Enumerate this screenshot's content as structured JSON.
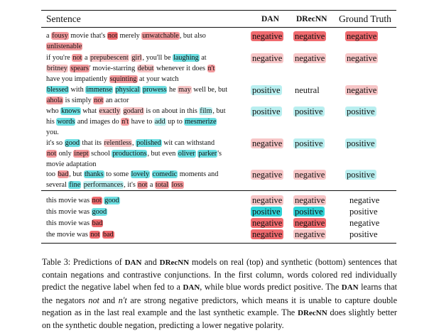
{
  "headers": {
    "sentence": "Sentence",
    "dan": "DAN",
    "drecnn": "DRecNN",
    "ground_truth": "Ground Truth"
  },
  "colors": {
    "neg-strong": "#f06b6f",
    "neg-mid": "#f39a9d",
    "neg-light": "#f7c6c7",
    "pos-strong": "#2ed3d7",
    "pos-mid": "#6ee0e3",
    "pos-light": "#b9eff0"
  },
  "real": [
    {
      "lines": [
        [
          [
            "a ",
            ""
          ],
          [
            "fousy",
            "neg-mid"
          ],
          [
            " movie that's ",
            ""
          ],
          [
            "not",
            "neg-strong"
          ],
          [
            " merely ",
            ""
          ],
          [
            "unwatchable",
            "neg-mid"
          ],
          [
            ", but also",
            ""
          ]
        ],
        [
          [
            "unlistenable",
            "neg-mid"
          ]
        ]
      ],
      "dan": {
        "text": "negative",
        "tone": "neg-strong"
      },
      "drecnn": {
        "text": "negative",
        "tone": "neg-strong"
      },
      "truth": {
        "text": "negative",
        "tone": "neg-strong"
      }
    },
    {
      "lines": [
        [
          [
            "if you're ",
            ""
          ],
          [
            "not",
            "neg-mid"
          ],
          [
            " a ",
            ""
          ],
          [
            "prepubescent",
            "neg-light"
          ],
          [
            " ",
            ""
          ],
          [
            "girl",
            "neg-light"
          ],
          [
            ", you'll be ",
            ""
          ],
          [
            "laughing",
            "pos-mid"
          ],
          [
            " at",
            ""
          ]
        ],
        [
          [
            "britney",
            "neg-light"
          ],
          [
            " ",
            ""
          ],
          [
            "spears",
            "neg-mid"
          ],
          [
            "' movie-starring ",
            ""
          ],
          [
            "debut",
            "neg-light"
          ],
          [
            " whenever it does ",
            ""
          ],
          [
            "n't",
            "neg-mid"
          ]
        ],
        [
          [
            "have you impatiently ",
            ""
          ],
          [
            "squinting",
            "neg-mid"
          ],
          [
            " at your watch",
            ""
          ]
        ]
      ],
      "dan": {
        "text": "negative",
        "tone": "neg-light"
      },
      "drecnn": {
        "text": "negative",
        "tone": "neg-light"
      },
      "truth": {
        "text": "negative",
        "tone": "neg-light"
      }
    },
    {
      "lines": [
        [
          [
            "blessed",
            "pos-mid"
          ],
          [
            " with ",
            ""
          ],
          [
            "immense",
            "pos-mid"
          ],
          [
            " ",
            ""
          ],
          [
            "physical",
            "pos-mid"
          ],
          [
            " ",
            ""
          ],
          [
            "prowess",
            "pos-mid"
          ],
          [
            " he ",
            ""
          ],
          [
            "may",
            "neg-light"
          ],
          [
            " well be, but",
            ""
          ]
        ],
        [
          [
            "ahola",
            "neg-mid"
          ],
          [
            " is simply ",
            ""
          ],
          [
            "not",
            "neg-mid"
          ],
          [
            " an actor",
            ""
          ]
        ]
      ],
      "dan": {
        "text": "positive",
        "tone": "pos-light"
      },
      "drecnn": {
        "text": "neutral",
        "tone": ""
      },
      "truth": {
        "text": "negative",
        "tone": "neg-light"
      }
    },
    {
      "lines": [
        [
          [
            "who ",
            ""
          ],
          [
            "knows",
            "pos-mid"
          ],
          [
            " what ",
            ""
          ],
          [
            "exactly",
            "neg-light"
          ],
          [
            " ",
            ""
          ],
          [
            "godard",
            "neg-light"
          ],
          [
            " is on about in this ",
            ""
          ],
          [
            "film",
            "pos-light"
          ],
          [
            ", but",
            ""
          ]
        ],
        [
          [
            "his ",
            ""
          ],
          [
            "words",
            "pos-mid"
          ],
          [
            " and images do ",
            ""
          ],
          [
            "n't",
            "neg-mid"
          ],
          [
            " have to ",
            ""
          ],
          [
            "add",
            "pos-light"
          ],
          [
            " up to ",
            ""
          ],
          [
            "mesmerize",
            "pos-mid"
          ]
        ],
        [
          [
            "you.",
            ""
          ]
        ]
      ],
      "dan": {
        "text": "positive",
        "tone": "pos-light"
      },
      "drecnn": {
        "text": "positive",
        "tone": "pos-light"
      },
      "truth": {
        "text": "positive",
        "tone": "pos-light"
      }
    },
    {
      "lines": [
        [
          [
            "it's so ",
            ""
          ],
          [
            "good",
            "pos-mid"
          ],
          [
            " that its ",
            ""
          ],
          [
            "relentless",
            "neg-light"
          ],
          [
            ", ",
            ""
          ],
          [
            "polished",
            "pos-mid"
          ],
          [
            " wit can withstand",
            ""
          ]
        ],
        [
          [
            "not",
            "neg-mid"
          ],
          [
            " only ",
            ""
          ],
          [
            "inept",
            "neg-mid"
          ],
          [
            " school ",
            ""
          ],
          [
            "productions",
            "pos-mid"
          ],
          [
            ", but even ",
            ""
          ],
          [
            "oliver",
            "pos-mid"
          ],
          [
            " ",
            ""
          ],
          [
            "parker",
            "pos-mid"
          ],
          [
            "'s",
            ""
          ]
        ],
        [
          [
            "movie adaptation",
            ""
          ]
        ]
      ],
      "dan": {
        "text": "negative",
        "tone": "neg-light"
      },
      "drecnn": {
        "text": "positive",
        "tone": "pos-light"
      },
      "truth": {
        "text": "positive",
        "tone": "pos-light"
      }
    },
    {
      "lines": [
        [
          [
            "too ",
            ""
          ],
          [
            "bad",
            "neg-mid"
          ],
          [
            ", but ",
            ""
          ],
          [
            "thanks",
            "pos-mid"
          ],
          [
            " to some ",
            ""
          ],
          [
            "lovely",
            "pos-mid"
          ],
          [
            " ",
            ""
          ],
          [
            "comedic",
            "pos-mid"
          ],
          [
            " moments and",
            ""
          ]
        ],
        [
          [
            "several ",
            ""
          ],
          [
            "fine",
            "pos-mid"
          ],
          [
            " ",
            ""
          ],
          [
            "performances",
            "pos-light"
          ],
          [
            ", it's ",
            ""
          ],
          [
            "not",
            "neg-mid"
          ],
          [
            " a ",
            ""
          ],
          [
            "total",
            "neg-mid"
          ],
          [
            " ",
            ""
          ],
          [
            "loss",
            "neg-mid"
          ]
        ]
      ],
      "dan": {
        "text": "negative",
        "tone": "neg-light"
      },
      "drecnn": {
        "text": "negative",
        "tone": "neg-light"
      },
      "truth": {
        "text": "positive",
        "tone": "pos-light"
      }
    }
  ],
  "synthetic": [
    {
      "words": [
        [
          "this movie was ",
          ""
        ],
        [
          "not",
          "neg-strong"
        ],
        [
          " ",
          ""
        ],
        [
          "good",
          "pos-mid"
        ]
      ],
      "dan": {
        "text": "negative",
        "tone": "neg-light"
      },
      "drecnn": {
        "text": "negative",
        "tone": "neg-light"
      },
      "truth": {
        "text": "negative",
        "tone": ""
      }
    },
    {
      "words": [
        [
          "this movie was ",
          ""
        ],
        [
          "good",
          "pos-mid"
        ]
      ],
      "dan": {
        "text": "positive",
        "tone": "pos-strong"
      },
      "drecnn": {
        "text": "positive",
        "tone": "pos-strong"
      },
      "truth": {
        "text": "positive",
        "tone": ""
      }
    },
    {
      "words": [
        [
          "this movie was ",
          ""
        ],
        [
          "bad",
          "neg-strong"
        ]
      ],
      "dan": {
        "text": "negative",
        "tone": "neg-strong"
      },
      "drecnn": {
        "text": "negative",
        "tone": "neg-strong"
      },
      "truth": {
        "text": "negative",
        "tone": ""
      }
    },
    {
      "words": [
        [
          "the movie was ",
          ""
        ],
        [
          "not",
          "neg-strong"
        ],
        [
          " ",
          ""
        ],
        [
          "bad",
          "neg-strong"
        ]
      ],
      "dan": {
        "text": "negative",
        "tone": "neg-strong"
      },
      "drecnn": {
        "text": "negative",
        "tone": "neg-light"
      },
      "truth": {
        "text": "positive",
        "tone": ""
      }
    }
  ],
  "caption": {
    "parts": [
      [
        "Table 3: Predictions of ",
        ""
      ],
      [
        "DAN",
        "sc"
      ],
      [
        " and ",
        ""
      ],
      [
        "DRecNN",
        "sc"
      ],
      [
        " models on real (top) and synthetic (bottom) sentences that contain negations and contrastive conjunctions. In the first column, words colored red individually predict the negative label when fed to a ",
        ""
      ],
      [
        "DAN",
        "sc"
      ],
      [
        ", while blue words predict positive. The ",
        ""
      ],
      [
        "DAN",
        "sc"
      ],
      [
        " learns that the negators ",
        ""
      ],
      [
        "not",
        "i"
      ],
      [
        " and ",
        ""
      ],
      [
        "n't",
        "i"
      ],
      [
        " are strong negative predictors, which means it is unable to capture double negation as in the last real example and the last synthetic example. The ",
        ""
      ],
      [
        "DRecNN",
        "sc"
      ],
      [
        " does slightly better on the synthetic double negation, predicting a lower negative polarity.",
        ""
      ]
    ]
  }
}
